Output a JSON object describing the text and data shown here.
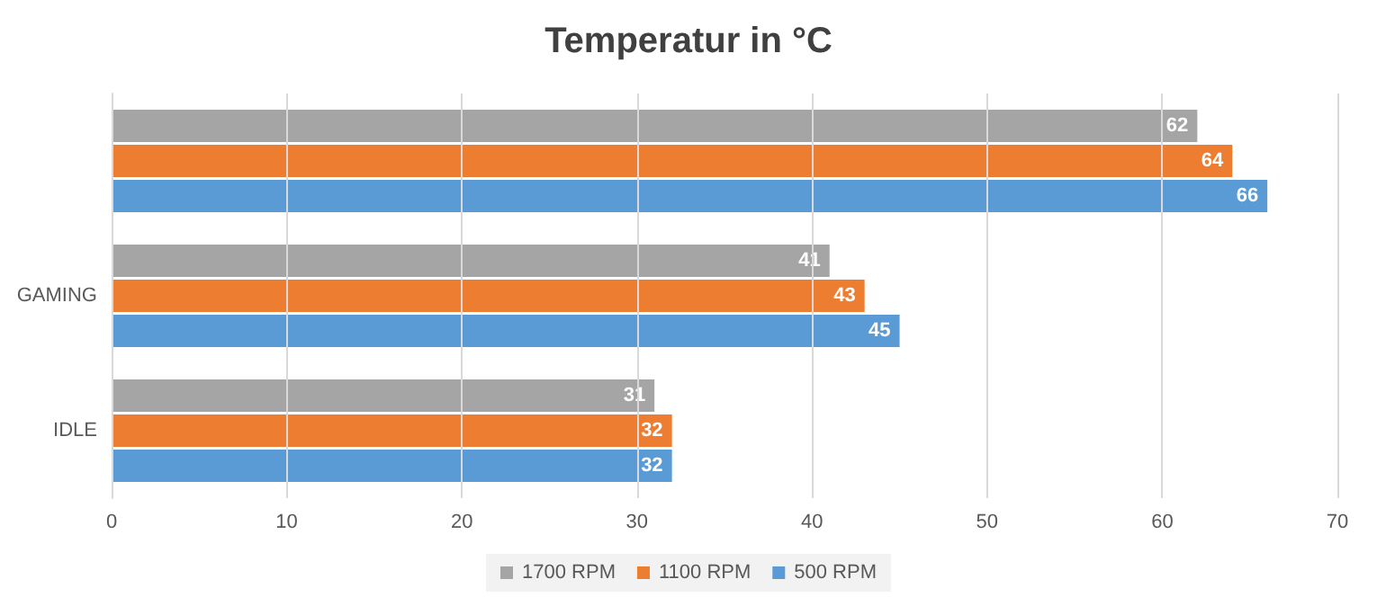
{
  "chart_data": {
    "type": "bar",
    "title": "Temperatur in °C",
    "orientation": "horizontal",
    "categories": [
      null,
      "GAMING",
      "IDLE"
    ],
    "series": [
      {
        "name": "1700 RPM",
        "color": "#a5a5a5",
        "values": [
          62,
          41,
          31
        ]
      },
      {
        "name": "1100 RPM",
        "color": "#ed7d31",
        "values": [
          64,
          43,
          32
        ]
      },
      {
        "name": "500 RPM",
        "color": "#5b9bd5",
        "values": [
          66,
          45,
          32
        ]
      }
    ],
    "xlim": [
      0,
      70
    ],
    "xticks": [
      0,
      10,
      20,
      30,
      40,
      50,
      60,
      70
    ],
    "grid": "x",
    "legend": "bottom",
    "data_labels": true
  }
}
